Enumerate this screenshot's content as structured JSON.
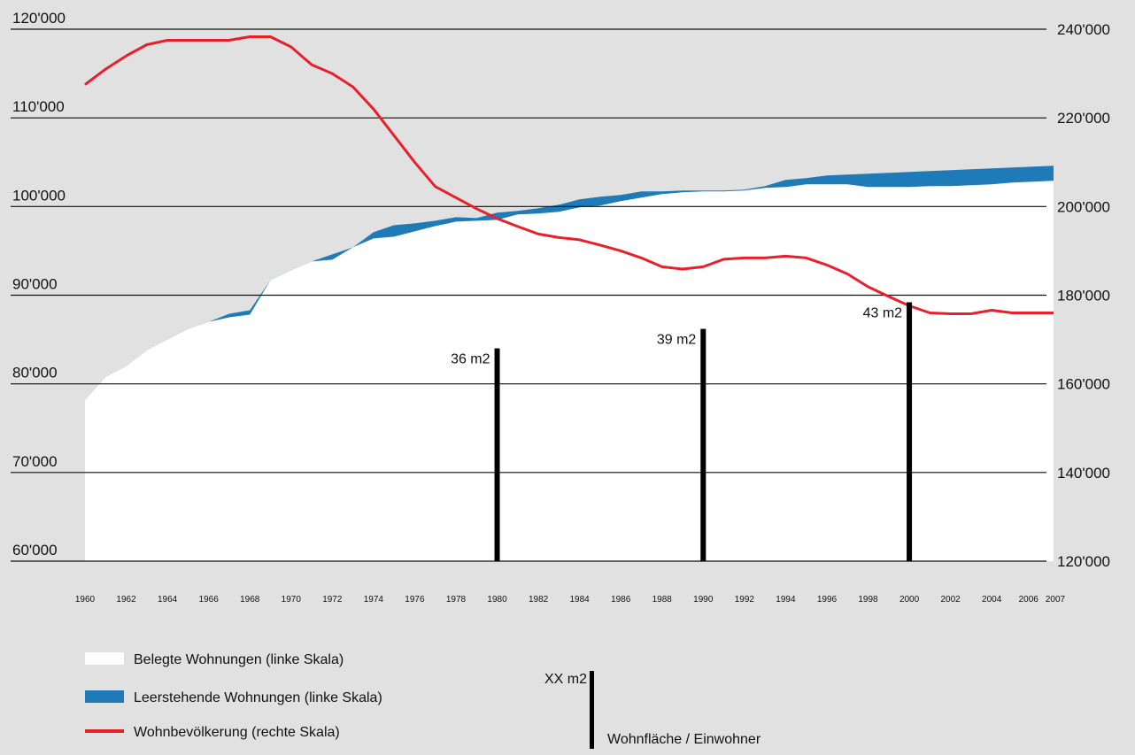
{
  "chart_data": {
    "type": "area",
    "years": [
      1960,
      1961,
      1962,
      1963,
      1964,
      1965,
      1966,
      1967,
      1968,
      1969,
      1970,
      1971,
      1972,
      1973,
      1974,
      1975,
      1976,
      1977,
      1978,
      1979,
      1980,
      1981,
      1982,
      1983,
      1984,
      1985,
      1986,
      1987,
      1988,
      1989,
      1990,
      1991,
      1992,
      1993,
      1994,
      1995,
      1996,
      1997,
      1998,
      1999,
      2000,
      2001,
      2002,
      2003,
      2004,
      2005,
      2006,
      2007
    ],
    "xticks": [
      "1960",
      "1962",
      "1964",
      "1966",
      "1968",
      "1970",
      "1972",
      "1974",
      "1976",
      "1978",
      "1980",
      "1982",
      "1984",
      "1986",
      "1988",
      "1990",
      "1992",
      "1994",
      "1996",
      "1998",
      "2000",
      "2002",
      "2004",
      "2006",
      "2007"
    ],
    "left_axis": {
      "ticks": [
        "120'000",
        "110'000",
        "100'000",
        "90'000",
        "80'000",
        "70'000",
        "60'000"
      ],
      "values": [
        120000,
        110000,
        100000,
        90000,
        80000,
        70000,
        60000
      ],
      "ylim": [
        60000,
        120000
      ]
    },
    "right_axis": {
      "ticks": [
        "240'000",
        "220'000",
        "200'000",
        "180'000",
        "160'000",
        "140'000",
        "120'000"
      ],
      "values": [
        240000,
        220000,
        200000,
        180000,
        160000,
        140000,
        120000
      ],
      "ylim": [
        120000,
        240000
      ]
    },
    "series": [
      {
        "name": "Belegte Wohnungen (linke Skala)",
        "axis": "left",
        "color": "#ffffff",
        "values": [
          78200,
          80800,
          82000,
          83800,
          85000,
          86200,
          87000,
          87500,
          87800,
          91700,
          92800,
          93800,
          94000,
          95400,
          96400,
          96600,
          97200,
          97800,
          98300,
          98400,
          98500,
          99100,
          99200,
          99400,
          99900,
          100100,
          100600,
          101000,
          101400,
          101600,
          101700,
          101700,
          101800,
          102100,
          102200,
          102500,
          102500,
          102500,
          102200,
          102200,
          102200,
          102300,
          102300,
          102400,
          102500,
          102700,
          102800,
          102900
        ]
      },
      {
        "name": "Leerstehende Wohnungen (linke Skala)",
        "axis": "left",
        "color": "#1f7bb7",
        "values": [
          78200,
          80800,
          82000,
          83800,
          85000,
          86200,
          87000,
          87900,
          88300,
          91700,
          92800,
          93800,
          94600,
          95400,
          97100,
          97900,
          98100,
          98400,
          98800,
          98700,
          99300,
          99500,
          99800,
          100200,
          100800,
          101100,
          101300,
          101700,
          101700,
          101800,
          101800,
          101800,
          101900,
          102300,
          103000,
          103200,
          103500,
          103600,
          103700,
          103800,
          103900,
          104000,
          104100,
          104200,
          104300,
          104400,
          104500,
          104600
        ]
      },
      {
        "name": "Wohnbevölkerung (rechte Skala)",
        "axis": "right",
        "color": "#e8202a",
        "values": [
          227500,
          231000,
          234000,
          236500,
          237500,
          237500,
          237500,
          237500,
          238300,
          238300,
          236000,
          232000,
          230000,
          227000,
          222000,
          216000,
          210000,
          204500,
          202000,
          199500,
          197300,
          195500,
          193800,
          193000,
          192500,
          191300,
          190000,
          188400,
          186400,
          185900,
          186400,
          188100,
          188400,
          188400,
          188800,
          188400,
          186800,
          184800,
          181900,
          179700,
          177600,
          176000,
          175800,
          175800,
          176600,
          176000,
          176000,
          176000
        ]
      }
    ],
    "annotations": [
      {
        "year": 1980,
        "label": "36 m2",
        "left_value": 84000
      },
      {
        "year": 1990,
        "label": "39 m2",
        "left_value": 86200
      },
      {
        "year": 2000,
        "label": "43 m2",
        "left_value": 89200
      }
    ]
  },
  "legend": {
    "occupied": "Belegte Wohnungen (linke Skala)",
    "vacant": "Leerstehende Wohnungen (linke Skala)",
    "population": "Wohnbevölkerung (rechte Skala)",
    "area_sample": "XX m2",
    "area_desc": "Wohnfläche / Einwohner"
  },
  "colors": {
    "background": "#e1e1e1",
    "grid": "#111111",
    "bar": "#000000"
  }
}
